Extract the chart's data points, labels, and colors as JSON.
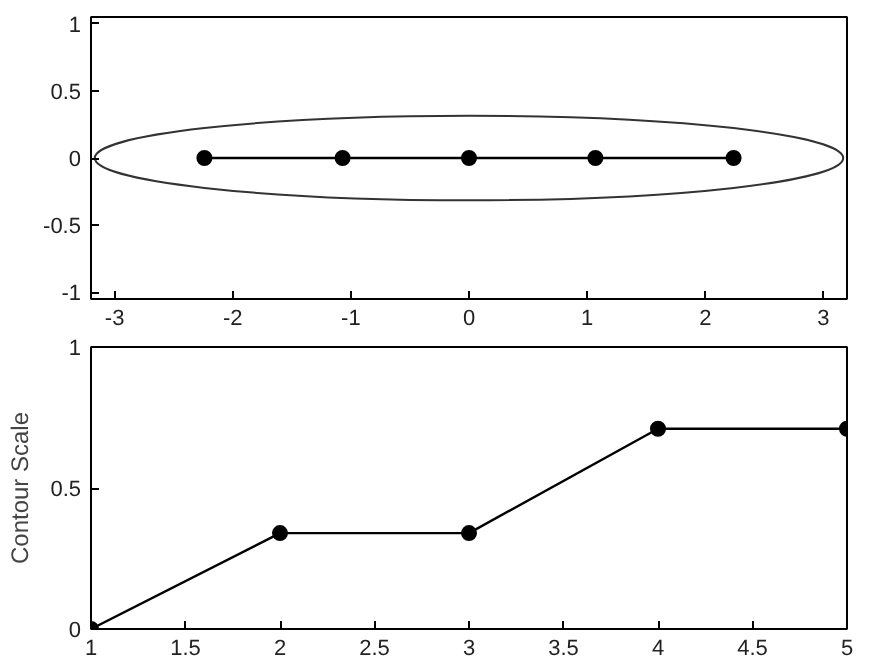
{
  "chart_data": [
    {
      "type": "line",
      "xlim": [
        -3.2,
        3.2
      ],
      "ylim": [
        -1.05,
        1.05
      ],
      "xticks": [
        -3,
        -2,
        -1,
        0,
        1,
        2,
        3
      ],
      "yticks": [
        -1,
        -0.5,
        0,
        0.5,
        1
      ],
      "grid": false,
      "series": [
        {
          "color": "#000000",
          "marker": "circle",
          "x": [
            -2.24,
            -1.07,
            0,
            1.07,
            2.24
          ],
          "values": [
            0,
            0,
            0,
            0,
            0
          ]
        }
      ]
    },
    {
      "type": "line",
      "ylabel": "Contour Scale",
      "xlim": [
        1,
        5
      ],
      "ylim": [
        0,
        1
      ],
      "xticks": [
        1,
        1.5,
        2,
        2.5,
        3,
        3.5,
        4,
        4.5,
        5
      ],
      "yticks": [
        0,
        0.5,
        1
      ],
      "grid": false,
      "series": [
        {
          "color": "#000000",
          "marker": "circle",
          "x": [
            1,
            2,
            3,
            4,
            5
          ],
          "values": [
            0,
            0.34,
            0.34,
            0.71,
            0.71
          ]
        }
      ]
    }
  ]
}
